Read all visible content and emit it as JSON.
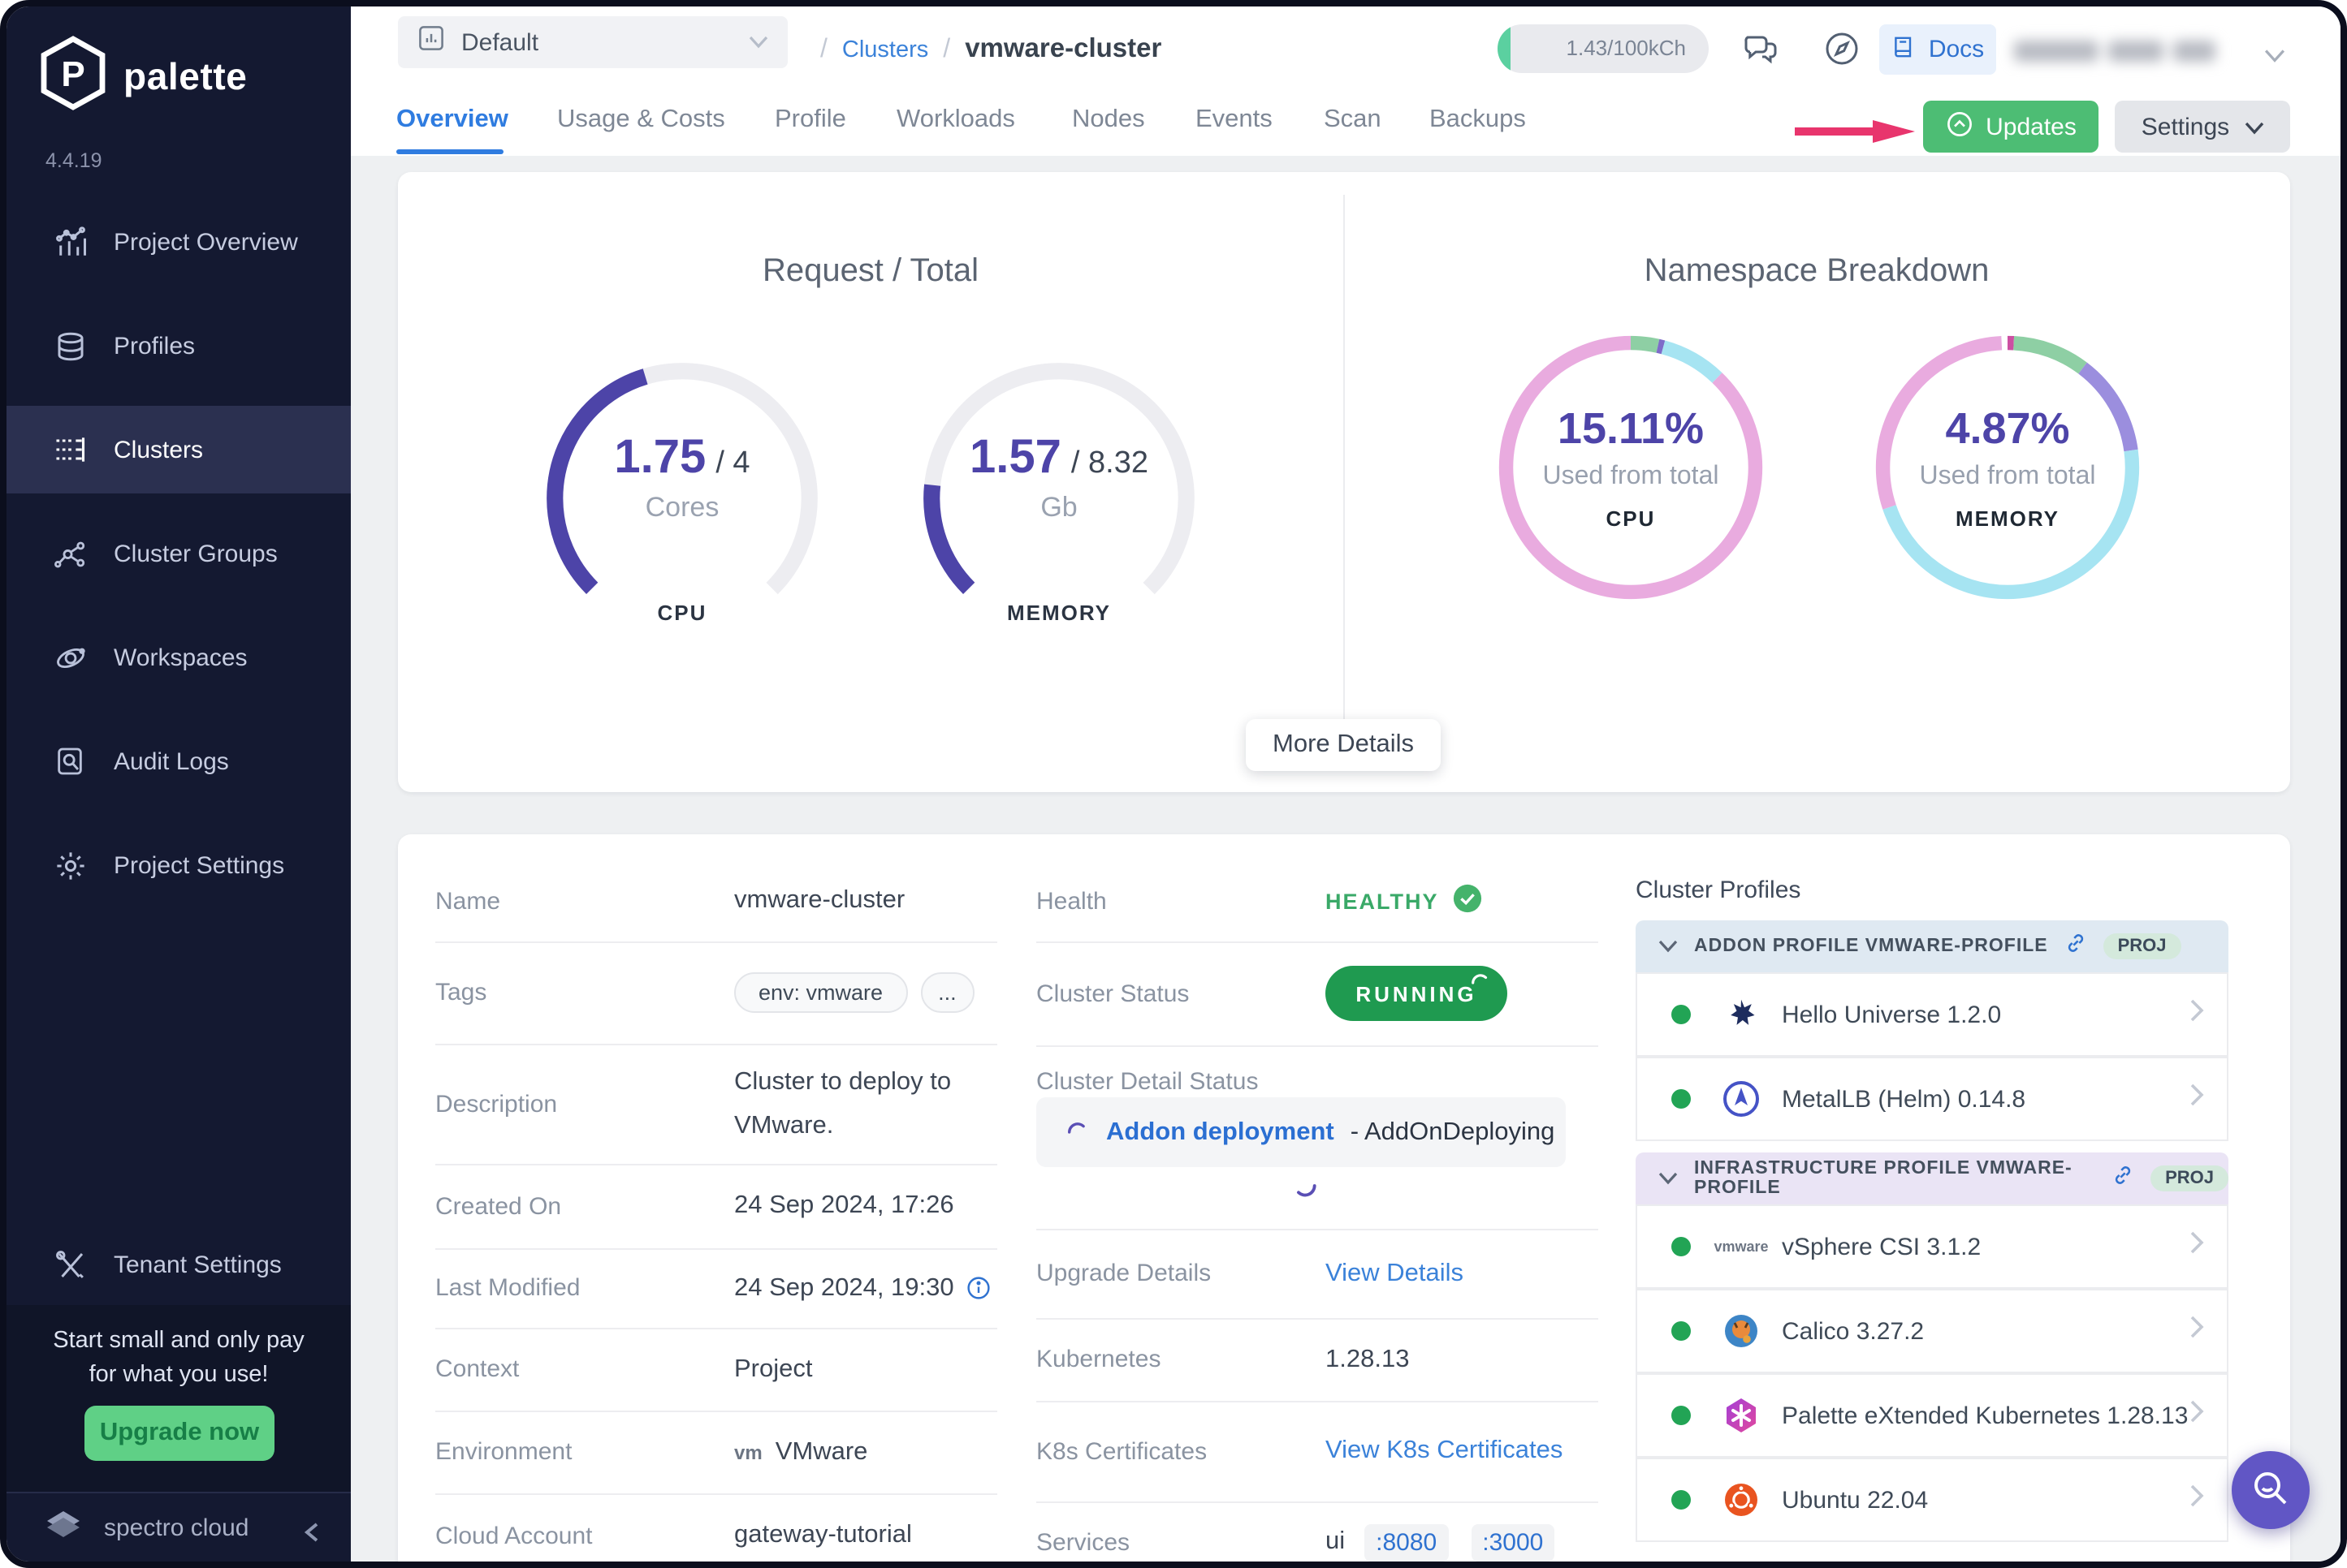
{
  "brand": {
    "name": "palette",
    "version": "4.4.19",
    "footer": "spectro cloud"
  },
  "sidebar": {
    "items": [
      {
        "label": "Project Overview"
      },
      {
        "label": "Profiles"
      },
      {
        "label": "Clusters"
      },
      {
        "label": "Cluster Groups"
      },
      {
        "label": "Workspaces"
      },
      {
        "label": "Audit Logs"
      },
      {
        "label": "Project Settings"
      }
    ],
    "tenant_settings": "Tenant Settings",
    "promo": {
      "line1": "Start small and only pay",
      "line2": "for what you use!",
      "cta": "Upgrade now"
    }
  },
  "header": {
    "project_selector": "Default",
    "breadcrumb": {
      "slash": "/",
      "section": "Clusters",
      "current": "vmware-cluster"
    },
    "usage": "1.43/100kCh",
    "docs_label": "Docs"
  },
  "tabs": [
    "Overview",
    "Usage & Costs",
    "Profile",
    "Workloads",
    "Nodes",
    "Events",
    "Scan",
    "Backups"
  ],
  "toolbar": {
    "updates": "Updates",
    "settings": "Settings",
    "more_details": "More Details"
  },
  "chart_data": [
    {
      "type": "gauge",
      "title": "Request / Total",
      "label": "CPU",
      "value": 1.75,
      "total": 4,
      "value_display": "1.75",
      "total_display": "/ 4",
      "unit": "Cores",
      "color": "#4d44a8",
      "track": "#ededf1",
      "arc_degrees": 270
    },
    {
      "type": "gauge",
      "label": "MEMORY",
      "value": 1.57,
      "total": 8.32,
      "value_display": "1.57",
      "total_display": "/ 8.32",
      "unit": "Gb",
      "color": "#4d44a8",
      "track": "#ededf1",
      "arc_degrees": 270
    },
    {
      "type": "donut",
      "title": "Namespace Breakdown",
      "label": "CPU",
      "center": "15.11%",
      "subtitle": "Used from total",
      "segments": [
        {
          "pct": 3.5,
          "color": "#8ecfa4"
        },
        {
          "pct": 0.7,
          "color": "#7e6bc9"
        },
        {
          "pct": 8.0,
          "color": "#a6e4f2"
        },
        {
          "pct": 87.8,
          "color": "#e9abdf"
        }
      ]
    },
    {
      "type": "donut",
      "label": "MEMORY",
      "center": "4.87%",
      "subtitle": "Used from total",
      "segments": [
        {
          "pct": 0.8,
          "color": "#cc4fa2"
        },
        {
          "pct": 9.5,
          "color": "#8ecfa4"
        },
        {
          "pct": 12.5,
          "color": "#9b8ede"
        },
        {
          "pct": 47.0,
          "color": "#a6e4f2"
        },
        {
          "pct": 29.4,
          "color": "#e9abdf"
        }
      ]
    }
  ],
  "details": {
    "name_label": "Name",
    "name": "vmware-cluster",
    "tags_label": "Tags",
    "tag1": "env: vmware",
    "tag_more": "...",
    "description_label": "Description",
    "description": "Cluster to deploy to VMware.",
    "created_label": "Created On",
    "created": "24 Sep 2024, 17:26",
    "modified_label": "Last Modified",
    "modified": "24 Sep 2024, 19:30",
    "context_label": "Context",
    "context": "Project",
    "environment_label": "Environment",
    "environment": "VMware",
    "environment_logo": "vm",
    "cloud_label": "Cloud Account",
    "cloud": "gateway-tutorial"
  },
  "status": {
    "health_label": "Health",
    "health": "HEALTHY",
    "cluster_status_label": "Cluster Status",
    "cluster_status": "RUNNING",
    "detail_status_label": "Cluster Detail Status",
    "detail_status_link": "Addon deployment",
    "detail_status_text": "- AddOnDeploying",
    "upgrade_label": "Upgrade Details",
    "upgrade_link": "View Details",
    "kubernetes_label": "Kubernetes",
    "kubernetes": "1.28.13",
    "certs_label": "K8s Certificates",
    "certs_link": "View K8s Certificates",
    "services_label": "Services",
    "services_name": "ui",
    "port1": ":8080",
    "port2": ":3000"
  },
  "profiles": {
    "title": "Cluster Profiles",
    "sections": [
      {
        "name": "ADDON PROFILE VMWARE-PROFILE",
        "badge": "PROJ",
        "items": [
          {
            "name": "Hello Universe 1.2.0"
          },
          {
            "name": "MetalLB (Helm) 0.14.8"
          }
        ]
      },
      {
        "name": "INFRASTRUCTURE PROFILE VMWARE-PROFILE",
        "badge": "PROJ",
        "items": [
          {
            "name": "vSphere CSI 3.1.2",
            "logo_text": "vmware"
          },
          {
            "name": "Calico 3.27.2"
          },
          {
            "name": "Palette eXtended Kubernetes 1.28.13"
          },
          {
            "name": "Ubuntu 22.04"
          }
        ]
      }
    ]
  }
}
